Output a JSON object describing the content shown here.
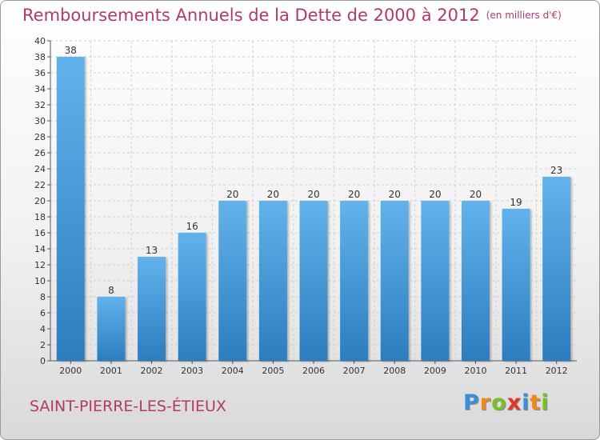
{
  "title": "Remboursements Annuels de la Dette de 2000 à 2012",
  "title_unit": "(en milliers d'€)",
  "town": "SAINT-PIERRE-LES-ÉTIEUX",
  "logo": {
    "letters": [
      "P",
      "r",
      "o",
      "x",
      "i",
      "t",
      "i"
    ],
    "colors": [
      "#3b8fd8",
      "#f08a1c",
      "#7cbd2a",
      "#e5352b",
      "#3b8fd8",
      "#f08a1c",
      "#7cbd2a"
    ]
  },
  "colors": {
    "title": "#b03a6a",
    "bar_top": "#62b2ec",
    "bar_bottom": "#2c7dbf",
    "grid": "#cfcfcf"
  },
  "chart_data": {
    "type": "bar",
    "categories": [
      "2000",
      "2001",
      "2002",
      "2003",
      "2004",
      "2005",
      "2006",
      "2007",
      "2008",
      "2009",
      "2010",
      "2011",
      "2012"
    ],
    "values": [
      38,
      8,
      13,
      16,
      20,
      20,
      20,
      20,
      20,
      20,
      20,
      19,
      23
    ],
    "ylim": [
      0,
      40
    ],
    "yticks": [
      0,
      2,
      4,
      6,
      8,
      10,
      12,
      14,
      16,
      18,
      20,
      22,
      24,
      26,
      28,
      30,
      32,
      34,
      36,
      38,
      40
    ],
    "grid": true,
    "data_labels": true
  }
}
